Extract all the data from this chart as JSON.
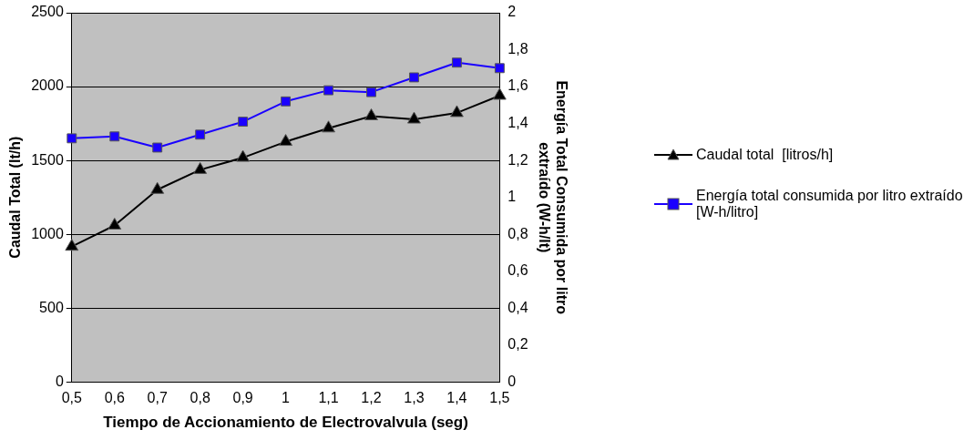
{
  "chart_data": {
    "type": "line",
    "xlabel": "Tiempo de Accionamiento de Electrovalvula (seg)",
    "ylabel": "Caudal Total (lt/h)",
    "y2label": "Energía Total Consumida por litro extraído (W-h/lt)",
    "categories": [
      "0,5",
      "0,6",
      "0,7",
      "0,8",
      "0,9",
      "1",
      "1,1",
      "1,2",
      "1,3",
      "1,4",
      "1,5"
    ],
    "series": [
      {
        "name": "Caudal total  [litros/h]",
        "color": "#000000",
        "marker": "triangle",
        "values": [
          917,
          1060,
          1302,
          1437,
          1519,
          1627,
          1718,
          1800,
          1778,
          1822,
          1939
        ]
      },
      {
        "name": "Energía total consumida por litro extraído [W-h/litro]",
        "color": "#1a00ff",
        "marker": "square",
        "axis": "y2",
        "values": [
          1.32,
          1.33,
          1.27,
          1.34,
          1.41,
          1.52,
          1.58,
          1.57,
          1.65,
          1.73,
          1.7
        ]
      }
    ],
    "ylim": [
      0,
      2500
    ],
    "yticks": [
      0,
      500,
      1000,
      1500,
      2000,
      2500
    ],
    "y2lim": [
      0,
      2
    ],
    "y2ticks": [
      0,
      {
        "value": 0.2,
        "label": "0,2"
      },
      {
        "value": 0.4,
        "label": "0,4"
      },
      {
        "value": 0.6,
        "label": "0,6"
      },
      {
        "value": 0.8,
        "label": "0,8"
      },
      1,
      {
        "value": 1.2,
        "label": "1,2"
      },
      {
        "value": 1.4,
        "label": "1,4"
      },
      {
        "value": 1.6,
        "label": "1,6"
      },
      {
        "value": 1.8,
        "label": "1,8"
      },
      2
    ],
    "grid": "y",
    "legend": "right"
  }
}
